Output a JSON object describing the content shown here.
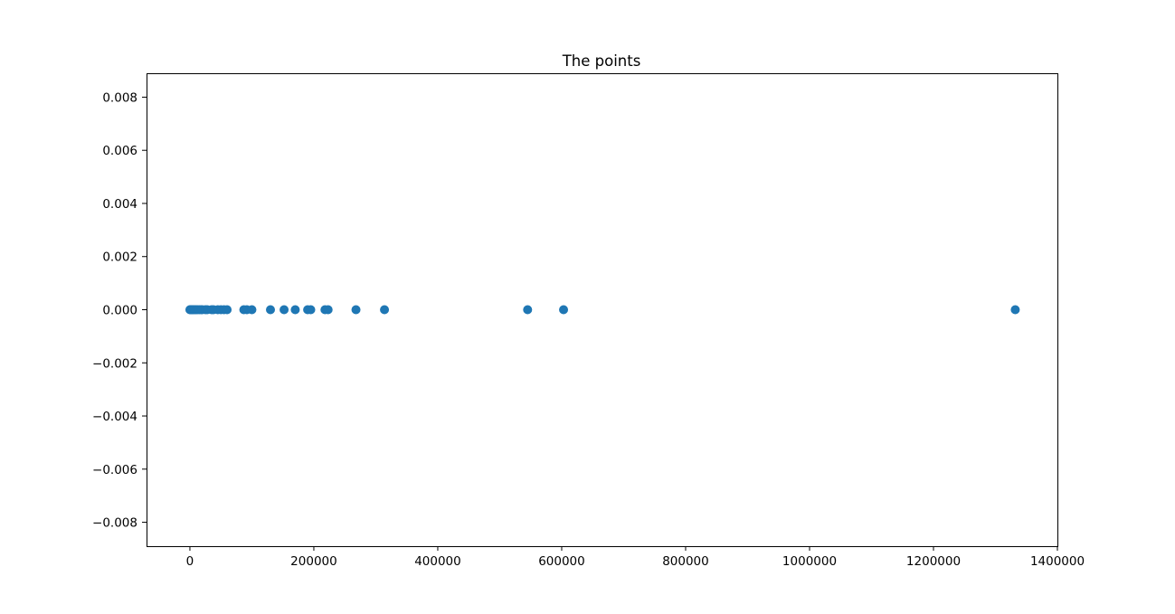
{
  "chart_data": {
    "type": "scatter",
    "title": "The points",
    "xlabel": "",
    "ylabel": "",
    "xlim": [
      -70000,
      1400000
    ],
    "ylim": [
      -0.0089,
      0.0089
    ],
    "x_ticks": [
      0,
      200000,
      400000,
      600000,
      800000,
      1000000,
      1200000,
      1400000
    ],
    "x_tick_labels": [
      "0",
      "200000",
      "400000",
      "600000",
      "800000",
      "1000000",
      "1200000",
      "1400000"
    ],
    "y_ticks": [
      0.008,
      0.006,
      0.004,
      0.002,
      0.0,
      -0.002,
      -0.004,
      -0.006,
      -0.008
    ],
    "y_tick_labels": [
      "0.008",
      "0.006",
      "0.004",
      "0.002",
      "0.000",
      "−0.002",
      "−0.004",
      "−0.006",
      "−0.008"
    ],
    "grid": false,
    "legend": "none",
    "color": "#1f77b4",
    "series": [
      {
        "x": [
          0,
          1000,
          2000,
          3000,
          4000,
          5000,
          6000,
          8000,
          10000,
          12000,
          15000,
          18000,
          20000,
          25000,
          28000,
          35000,
          38000,
          45000,
          50000,
          55000,
          60000,
          87000,
          92000,
          100000,
          130000,
          152000,
          170000,
          190000,
          195000,
          218000,
          223000,
          268000,
          314000,
          545000,
          603000,
          1332000
        ],
        "y": [
          0,
          0,
          0,
          0,
          0,
          0,
          0,
          0,
          0,
          0,
          0,
          0,
          0,
          0,
          0,
          0,
          0,
          0,
          0,
          0,
          0,
          0,
          0,
          0,
          0,
          0,
          0,
          0,
          0,
          0,
          0,
          0,
          0,
          0,
          0,
          0
        ]
      }
    ]
  }
}
